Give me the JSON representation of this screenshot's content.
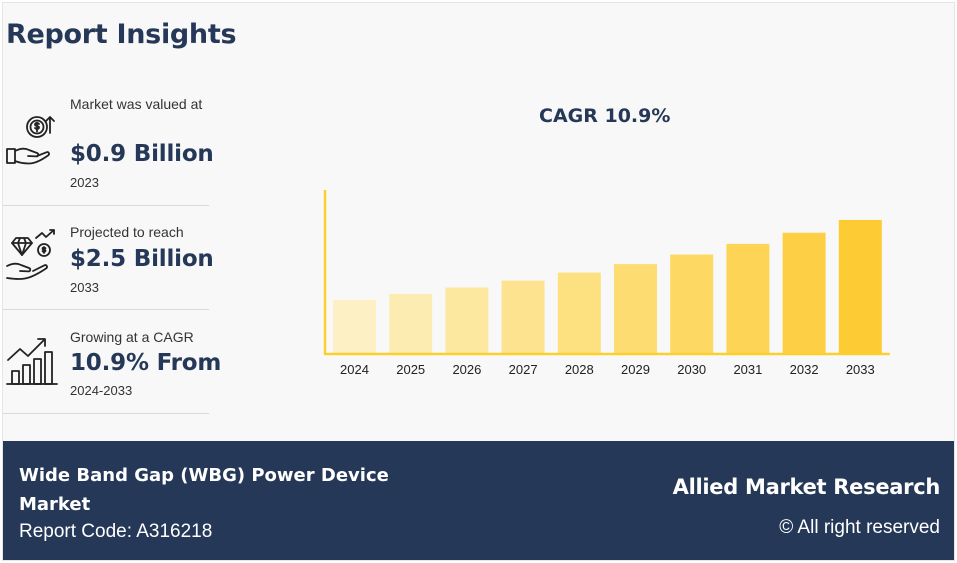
{
  "header": {
    "title": "Report Insights"
  },
  "stats": [
    {
      "label": "Market was valued at",
      "value": "$0.9 Billion",
      "year": "2023",
      "icon": "money-hand-icon"
    },
    {
      "label": "Projected to reach",
      "value": "$2.5 Billion",
      "year": "2033",
      "icon": "diamond-hand-icon"
    },
    {
      "label": "Growing at a CAGR",
      "value": "10.9% From",
      "year": "2024-2033",
      "icon": "growth-chart-icon"
    }
  ],
  "chart_title": "CAGR 10.9%",
  "chart_data": {
    "type": "bar",
    "title": "CAGR 10.9%",
    "categories": [
      "2024",
      "2025",
      "2026",
      "2027",
      "2028",
      "2029",
      "2030",
      "2031",
      "2032",
      "2033"
    ],
    "values": [
      1.0,
      1.11,
      1.23,
      1.36,
      1.51,
      1.67,
      1.85,
      2.05,
      2.26,
      2.5
    ],
    "ylim": [
      0,
      3.1
    ],
    "xlabel": "",
    "ylabel": "",
    "grid": false,
    "colors": [
      "#fdf0c4",
      "#fdecb1",
      "#fde8a0",
      "#fde38f",
      "#fde080",
      "#fddc71",
      "#fdd863",
      "#fdd455",
      "#fdcf44",
      "#fdcb34"
    ],
    "axis_color": "#fcd02c"
  },
  "footer": {
    "market_name": "Wide Band Gap (WBG) Power Device Market",
    "report_code": "Report Code: A316218",
    "brand": "Allied Market Research",
    "rights": "© All right reserved"
  },
  "colors": {
    "navy": "#253858",
    "background": "#f8f8f8"
  }
}
